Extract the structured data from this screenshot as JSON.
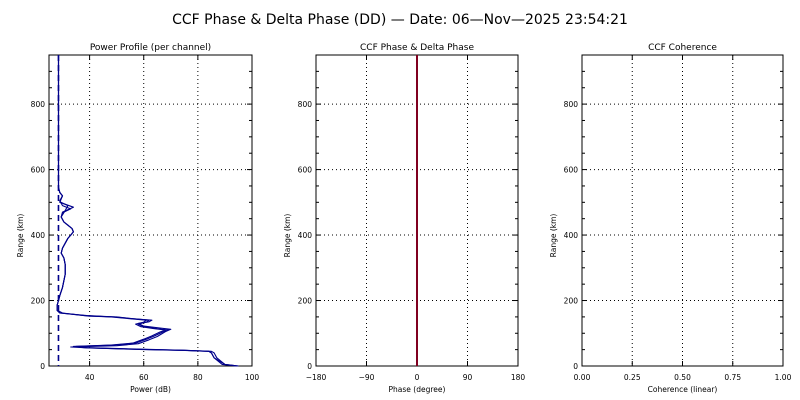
{
  "title": "CCF Phase & Delta Phase (DD) — Date: 06—Nov—2025 23:54:21",
  "chart_data": [
    {
      "type": "line",
      "title": "Power Profile (per channel)",
      "xlabel": "Power (dB)",
      "ylabel": "Range (km)",
      "xlim": [
        25,
        100
      ],
      "ylim": [
        0,
        950
      ],
      "xticks": [
        40,
        60,
        80,
        100
      ],
      "yticks": [
        0,
        200,
        400,
        600,
        800
      ],
      "grid": true,
      "series_color": "#00008b",
      "noise_level": 28.5,
      "series": [
        {
          "points": [
            [
              95,
              0
            ],
            [
              90,
              5
            ],
            [
              87,
              25
            ],
            [
              86,
              40
            ],
            [
              85,
              45
            ],
            [
              75,
              48
            ],
            [
              62,
              50
            ],
            [
              40,
              55
            ],
            [
              33,
              58
            ],
            [
              50,
              62
            ],
            [
              58,
              68
            ],
            [
              62,
              80
            ],
            [
              65,
              90
            ],
            [
              68,
              105
            ],
            [
              70,
              112
            ],
            [
              66,
              116
            ],
            [
              60,
              122
            ],
            [
              58,
              130
            ],
            [
              62,
              135
            ],
            [
              63,
              140
            ],
            [
              55,
              145
            ],
            [
              50,
              150
            ],
            [
              40,
              152
            ],
            [
              30,
              162
            ],
            [
              28,
              170
            ],
            [
              28,
              185
            ],
            [
              28.5,
              200
            ],
            [
              29,
              215
            ],
            [
              30,
              240
            ],
            [
              31,
              280
            ],
            [
              31,
              310
            ],
            [
              30.5,
              330
            ],
            [
              29.5,
              345
            ],
            [
              30,
              360
            ],
            [
              31,
              375
            ],
            [
              32,
              390
            ],
            [
              33,
              400
            ],
            [
              34,
              410
            ],
            [
              33.5,
              420
            ],
            [
              32,
              430
            ],
            [
              30.5,
              440
            ],
            [
              29.5,
              455
            ],
            [
              30,
              470
            ],
            [
              34,
              485
            ],
            [
              29,
              500
            ],
            [
              30,
              520
            ],
            [
              29,
              530
            ],
            [
              28.5,
              545
            ],
            [
              28.5,
              600
            ],
            [
              28.5,
              700
            ],
            [
              28.5,
              800
            ],
            [
              28.5,
              950
            ]
          ]
        },
        {
          "points": [
            [
              95,
              0
            ],
            [
              90,
              5
            ],
            [
              86,
              25
            ],
            [
              85,
              40
            ],
            [
              84,
              45
            ],
            [
              74,
              48
            ],
            [
              60,
              50
            ],
            [
              38,
              56
            ],
            [
              34,
              60
            ],
            [
              48,
              64
            ],
            [
              56,
              70
            ],
            [
              60,
              82
            ],
            [
              63,
              92
            ],
            [
              66,
              104
            ],
            [
              68,
              110
            ],
            [
              64,
              114
            ],
            [
              59,
              120
            ],
            [
              57,
              128
            ],
            [
              60,
              134
            ],
            [
              61,
              140
            ],
            [
              53,
              146
            ],
            [
              48,
              150
            ],
            [
              38,
              154
            ],
            [
              29,
              162
            ],
            [
              28,
              170
            ],
            [
              28,
              185
            ],
            [
              28.5,
              200
            ],
            [
              29,
              215
            ],
            [
              30,
              240
            ],
            [
              31,
              280
            ],
            [
              31,
              310
            ],
            [
              30.5,
              330
            ],
            [
              29.5,
              345
            ],
            [
              30,
              360
            ],
            [
              31,
              375
            ],
            [
              32,
              390
            ],
            [
              33,
              400
            ],
            [
              34,
              410
            ],
            [
              33.5,
              420
            ],
            [
              32,
              430
            ],
            [
              30.5,
              440
            ],
            [
              29.5,
              455
            ],
            [
              31,
              475
            ],
            [
              32,
              490
            ],
            [
              29,
              502
            ],
            [
              30,
              520
            ],
            [
              29,
              530
            ],
            [
              28.5,
              545
            ],
            [
              28.5,
              600
            ],
            [
              28.5,
              700
            ],
            [
              28.5,
              800
            ],
            [
              28.5,
              950
            ]
          ]
        },
        {
          "points": [
            [
              94,
              0
            ],
            [
              89,
              5
            ],
            [
              86,
              25
            ],
            [
              85,
              40
            ],
            [
              84,
              45
            ],
            [
              75,
              48
            ],
            [
              61,
              51
            ],
            [
              39,
              56
            ],
            [
              35,
              60
            ],
            [
              49,
              64
            ],
            [
              57,
              70
            ],
            [
              61,
              82
            ],
            [
              64,
              92
            ],
            [
              67,
              104
            ],
            [
              69,
              110
            ],
            [
              65,
              114
            ],
            [
              60,
              120
            ],
            [
              58,
              128
            ],
            [
              61,
              134
            ],
            [
              62,
              140
            ],
            [
              54,
              146
            ],
            [
              49,
              150
            ],
            [
              39,
              154
            ],
            [
              29,
              162
            ],
            [
              28,
              170
            ],
            [
              28,
              185
            ],
            [
              28.5,
              200
            ],
            [
              29,
              215
            ],
            [
              30,
              240
            ],
            [
              31,
              280
            ],
            [
              31,
              310
            ],
            [
              30.5,
              330
            ],
            [
              29.5,
              345
            ],
            [
              30,
              360
            ],
            [
              31,
              375
            ],
            [
              32,
              390
            ],
            [
              33,
              400
            ],
            [
              34,
              410
            ],
            [
              33.5,
              420
            ],
            [
              32,
              430
            ],
            [
              30.5,
              440
            ],
            [
              29.5,
              455
            ],
            [
              30,
              468
            ],
            [
              33,
              480
            ],
            [
              30,
              490
            ],
            [
              29,
              505
            ],
            [
              30,
              520
            ],
            [
              29,
              530
            ],
            [
              28.5,
              545
            ],
            [
              28.5,
              600
            ],
            [
              28.5,
              700
            ],
            [
              28.5,
              800
            ],
            [
              28.5,
              950
            ]
          ]
        }
      ]
    },
    {
      "type": "line",
      "title": "CCF Phase & Delta Phase",
      "xlabel": "Phase (degree)",
      "ylabel": "Range (km)",
      "xlim": [
        -180,
        180
      ],
      "ylim": [
        0,
        950
      ],
      "xticks": [
        -180,
        -90,
        0,
        90,
        180
      ],
      "yticks": [
        0,
        200,
        400,
        600,
        800
      ],
      "grid": true,
      "line_color": "#800020",
      "vertical_line_x": 0
    },
    {
      "type": "line",
      "title": "CCF Coherence",
      "xlabel": "Coherence (linear)",
      "ylabel": "Range (km)",
      "xlim": [
        0,
        1
      ],
      "ylim": [
        0,
        950
      ],
      "xticks": [
        0.0,
        0.25,
        0.5,
        0.75,
        1.0
      ],
      "xticklabels": [
        "0.00",
        "0.25",
        "0.50",
        "0.75",
        "1.00"
      ],
      "yticks": [
        0,
        200,
        400,
        600,
        800
      ],
      "grid": true
    }
  ]
}
